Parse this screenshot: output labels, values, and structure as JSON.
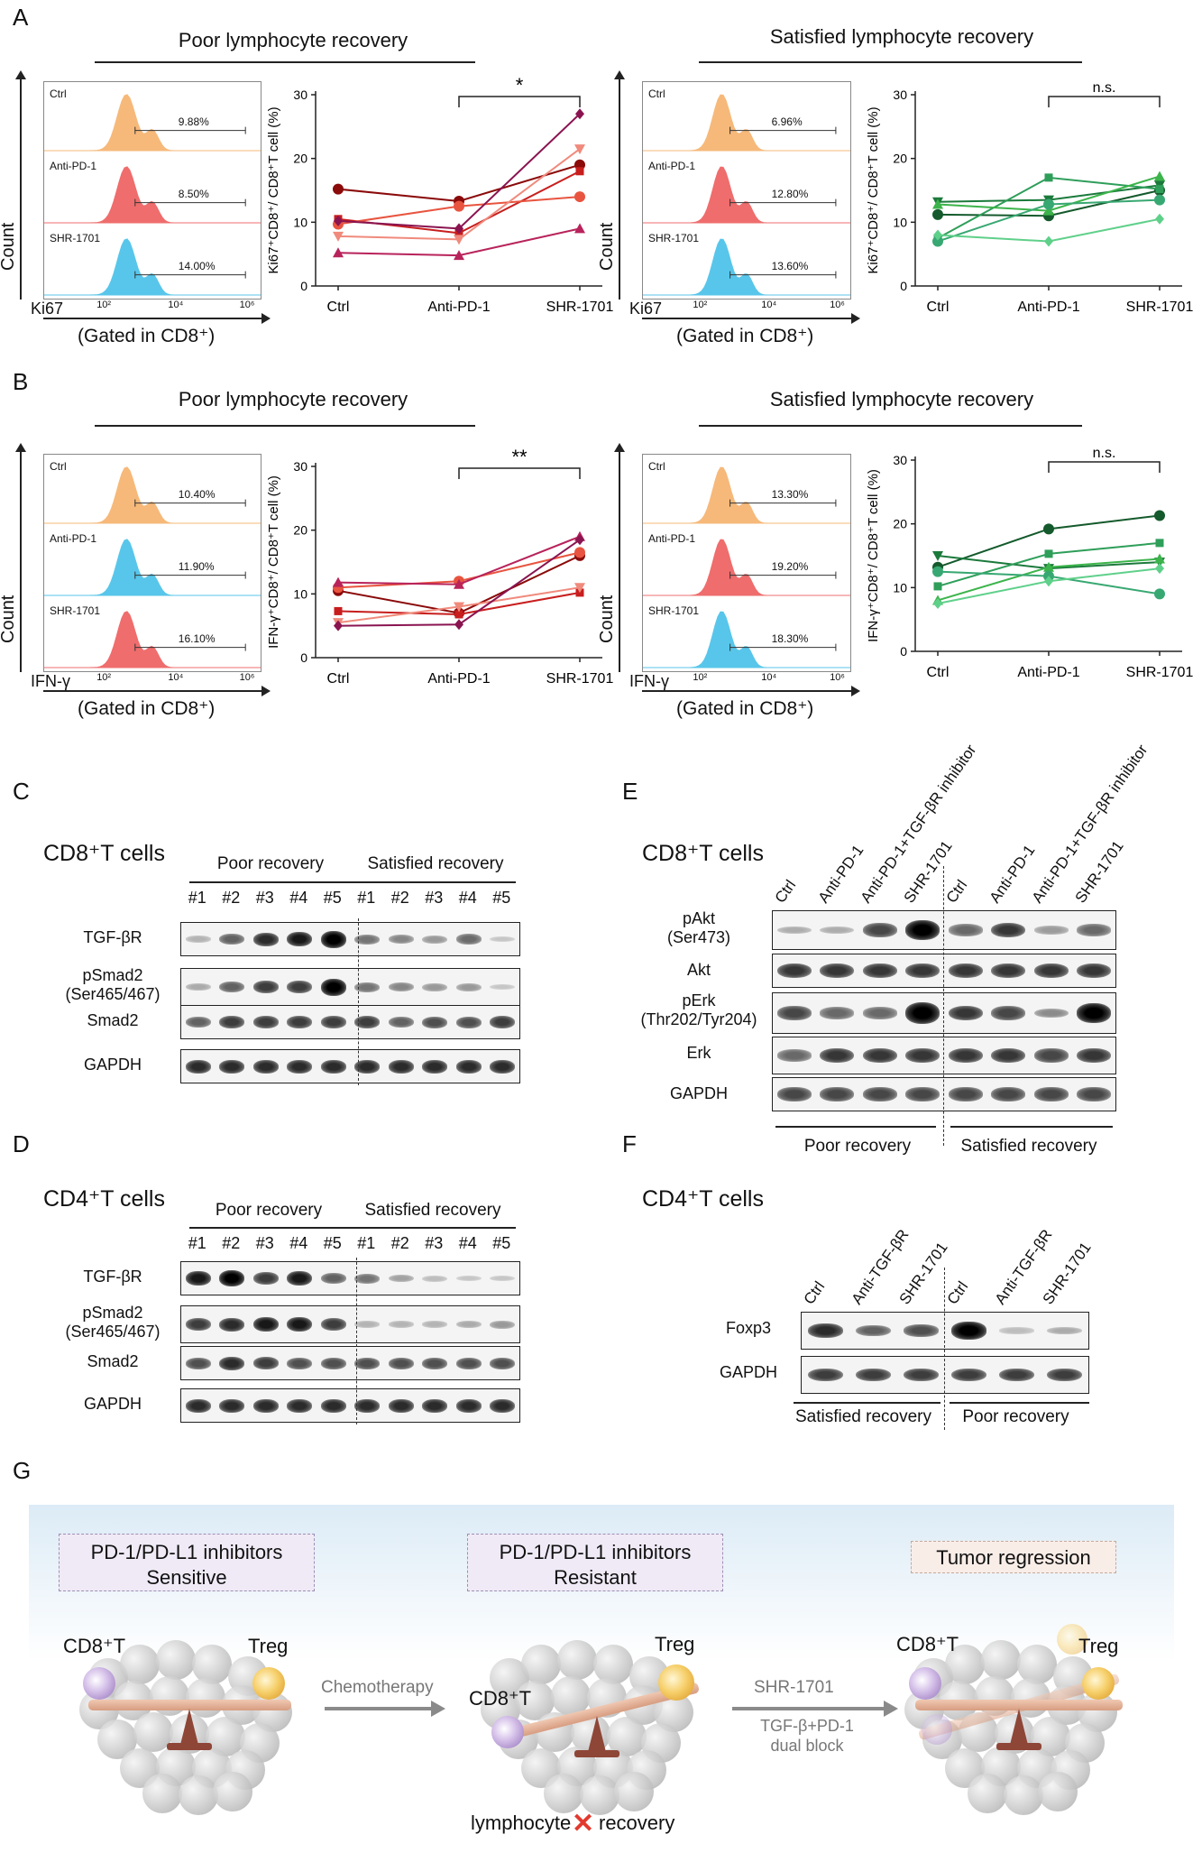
{
  "panel_labels": {
    "A": "A",
    "B": "B",
    "C": "C",
    "D": "D",
    "E": "E",
    "F": "F",
    "G": "G"
  },
  "poor_title": "Poor lymphocyte recovery",
  "sat_title": "Satisfied lymphocyte recovery",
  "hist_common": {
    "count": "Count",
    "gated": "(Gated in CD8⁺)",
    "ticks": [
      "10²",
      "10⁴",
      "10⁶"
    ]
  },
  "A_poor_hist": {
    "marker": "Ki67",
    "rows": [
      {
        "label": "Ctrl",
        "pct": "9.88%"
      },
      {
        "label": "Anti-PD-1",
        "pct": "8.50%"
      },
      {
        "label": "SHR-1701",
        "pct": "14.00%"
      }
    ]
  },
  "A_sat_hist": {
    "marker": "Ki67",
    "rows": [
      {
        "label": "Ctrl",
        "pct": "6.96%"
      },
      {
        "label": "Anti-PD-1",
        "pct": "12.80%"
      },
      {
        "label": "SHR-1701",
        "pct": "13.60%"
      }
    ]
  },
  "B_poor_hist": {
    "marker": "IFN-γ",
    "rows": [
      {
        "label": "Ctrl",
        "pct": "10.40%"
      },
      {
        "label": "Anti-PD-1",
        "pct": "11.90%"
      },
      {
        "label": "SHR-1701",
        "pct": "16.10%"
      }
    ]
  },
  "B_sat_hist": {
    "marker": "IFN-γ",
    "rows": [
      {
        "label": "Ctrl",
        "pct": "13.30%"
      },
      {
        "label": "Anti-PD-1",
        "pct": "19.20%"
      },
      {
        "label": "SHR-1701",
        "pct": "18.30%"
      }
    ]
  },
  "chart_data": [
    {
      "type": "line",
      "panel": "A-poor",
      "categories": [
        "Ctrl",
        "Anti-PD-1",
        "SHR-1701"
      ],
      "ylabel": "Ki67⁺CD8⁺/ CD8⁺T cell (%)",
      "ylim": [
        0,
        30
      ],
      "yticks": [
        "0",
        "10",
        "20",
        "30"
      ],
      "significance": "*",
      "series": [
        {
          "values": [
            15.2,
            13.3,
            19.0
          ],
          "color": "#8b0a0a",
          "marker": "circle"
        },
        {
          "values": [
            10.5,
            8.3,
            18.0
          ],
          "color": "#c81e1e",
          "marker": "square"
        },
        {
          "values": [
            9.7,
            12.5,
            14.0
          ],
          "color": "#e8543f",
          "marker": "circle"
        },
        {
          "values": [
            7.8,
            7.3,
            21.5
          ],
          "color": "#f08a7c",
          "marker": "triangle-down"
        },
        {
          "values": [
            5.2,
            4.8,
            9.0
          ],
          "color": "#b8235b",
          "marker": "triangle"
        },
        {
          "values": [
            10.2,
            9.0,
            27.0
          ],
          "color": "#8a1450",
          "marker": "diamond"
        }
      ]
    },
    {
      "type": "line",
      "panel": "A-satisfied",
      "categories": [
        "Ctrl",
        "Anti-PD-1",
        "SHR-1701"
      ],
      "ylabel": "Ki67⁺CD8⁺/ CD8⁺T cell (%)",
      "ylim": [
        0,
        30
      ],
      "yticks": [
        "0",
        "10",
        "20",
        "30"
      ],
      "significance": "n.s.",
      "series": [
        {
          "values": [
            11.2,
            11.0,
            15.0
          ],
          "color": "#145a2c",
          "marker": "circle"
        },
        {
          "values": [
            13.2,
            13.5,
            15.8
          ],
          "color": "#1b7a3b",
          "marker": "triangle-down"
        },
        {
          "values": [
            7.5,
            17.0,
            15.2
          ],
          "color": "#2e9e59",
          "marker": "square"
        },
        {
          "values": [
            12.8,
            11.8,
            17.2
          ],
          "color": "#3cb44b",
          "marker": "triangle"
        },
        {
          "values": [
            7.0,
            12.8,
            13.5
          ],
          "color": "#38a872",
          "marker": "circle"
        },
        {
          "values": [
            8.0,
            7.0,
            10.5
          ],
          "color": "#5fd08a",
          "marker": "diamond"
        }
      ]
    },
    {
      "type": "line",
      "panel": "B-poor",
      "categories": [
        "Ctrl",
        "Anti-PD-1",
        "SHR-1701"
      ],
      "ylabel": "IFN-γ⁺CD8⁺/ CD8⁺T cell (%)",
      "ylim": [
        0,
        30
      ],
      "yticks": [
        "0",
        "10",
        "20",
        "30"
      ],
      "significance": "**",
      "series": [
        {
          "values": [
            10.5,
            7.0,
            16.0
          ],
          "color": "#8b0a0a",
          "marker": "circle"
        },
        {
          "values": [
            7.3,
            6.8,
            10.2
          ],
          "color": "#c81e1e",
          "marker": "square"
        },
        {
          "values": [
            11.0,
            12.0,
            16.5
          ],
          "color": "#e8543f",
          "marker": "circle"
        },
        {
          "values": [
            5.5,
            8.0,
            11.0
          ],
          "color": "#f08a7c",
          "marker": "triangle-down"
        },
        {
          "values": [
            11.8,
            11.5,
            19.0
          ],
          "color": "#b8235b",
          "marker": "triangle"
        },
        {
          "values": [
            5.0,
            5.2,
            18.5
          ],
          "color": "#8a1450",
          "marker": "diamond"
        }
      ]
    },
    {
      "type": "line",
      "panel": "B-satisfied",
      "categories": [
        "Ctrl",
        "Anti-PD-1",
        "SHR-1701"
      ],
      "ylabel": "IFN-γ⁺CD8⁺/ CD8⁺T cell (%)",
      "ylim": [
        0,
        30
      ],
      "yticks": [
        "0",
        "10",
        "20",
        "30"
      ],
      "significance": "n.s.",
      "series": [
        {
          "values": [
            13.2,
            19.2,
            21.3
          ],
          "color": "#145a2c",
          "marker": "circle"
        },
        {
          "values": [
            15.0,
            13.0,
            14.0
          ],
          "color": "#1b7a3b",
          "marker": "triangle-down"
        },
        {
          "values": [
            10.2,
            15.3,
            17.0
          ],
          "color": "#2e9e59",
          "marker": "square"
        },
        {
          "values": [
            8.0,
            13.2,
            14.5
          ],
          "color": "#3cb44b",
          "marker": "triangle"
        },
        {
          "values": [
            12.5,
            11.8,
            9.0
          ],
          "color": "#38a872",
          "marker": "circle"
        },
        {
          "values": [
            7.5,
            11.0,
            13.0
          ],
          "color": "#5fd08a",
          "marker": "diamond"
        }
      ]
    }
  ],
  "C": {
    "title": "CD8⁺T cells",
    "group_poor": "Poor recovery",
    "group_sat": "Satisfied recovery",
    "lanes": [
      "#1",
      "#2",
      "#3",
      "#4",
      "#5",
      "#1",
      "#2",
      "#3",
      "#4",
      "#5"
    ],
    "rows": [
      {
        "label": "TGF-βR"
      },
      {
        "label": "pSmad2\n(Ser465/467)"
      },
      {
        "label": "Smad2"
      },
      {
        "label": "GAPDH"
      }
    ]
  },
  "D": {
    "title": "CD4⁺T cells",
    "group_poor": "Poor recovery",
    "group_sat": "Satisfied recovery",
    "lanes": [
      "#1",
      "#2",
      "#3",
      "#4",
      "#5",
      "#1",
      "#2",
      "#3",
      "#4",
      "#5"
    ],
    "rows": [
      {
        "label": "TGF-βR"
      },
      {
        "label": "pSmad2\n(Ser465/467)"
      },
      {
        "label": "Smad2"
      },
      {
        "label": "GAPDH"
      }
    ]
  },
  "E": {
    "title": "CD8⁺T cells",
    "lanes": [
      "Ctrl",
      "Anti-PD-1",
      "Anti-PD-1+TGF-βR inhibitor",
      "SHR-1701",
      "Ctrl",
      "Anti-PD-1",
      "Anti-PD-1+TGF-βR inhibitor",
      "SHR-1701"
    ],
    "rows": [
      {
        "label": "pAkt\n(Ser473)"
      },
      {
        "label": "Akt"
      },
      {
        "label": "pErk\n(Thr202/Tyr204)"
      },
      {
        "label": "Erk"
      },
      {
        "label": "GAPDH"
      }
    ],
    "group_poor": "Poor recovery",
    "group_sat": "Satisfied recovery"
  },
  "F": {
    "title": "CD4⁺T cells",
    "lanes": [
      "Ctrl",
      "Anti-TGF-βR",
      "SHR-1701",
      "Ctrl",
      "Anti-TGF-βR",
      "SHR-1701"
    ],
    "rows": [
      {
        "label": "Foxp3"
      },
      {
        "label": "GAPDH"
      }
    ],
    "group_left": "Satisfied recovery",
    "group_right": "Poor recovery"
  },
  "G": {
    "box1": "PD-1/PD-L1 inhibitors\nSensitive",
    "box2": "PD-1/PD-L1 inhibitors\nResistant",
    "box3": "Tumor regression",
    "cd8": "CD8⁺T",
    "treg": "Treg",
    "chemo": "Chemotherapy",
    "drug": "SHR-1701",
    "block": "TGF-β+PD-1\ndual block",
    "lymph_left": "lymphocyte",
    "lymph_right": "recovery"
  }
}
